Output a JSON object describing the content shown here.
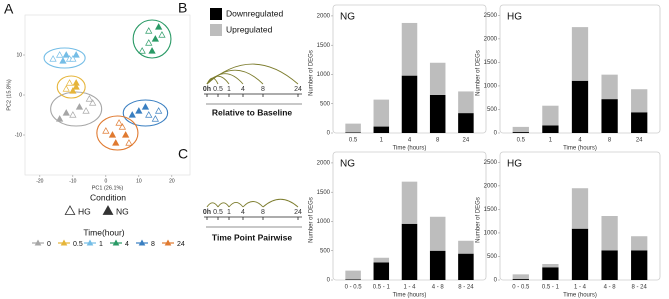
{
  "panel_label": "A",
  "diagrams": [
    {
      "label": "B",
      "timepoints": [
        "0h",
        "0.5",
        "1",
        "4",
        "8",
        "24"
      ],
      "caption": "Relative to Baseline",
      "mode": "baseline"
    },
    {
      "label": "C",
      "timepoints": [
        "0h",
        "0.5",
        "1",
        "4",
        "8",
        "24"
      ],
      "caption": "Time Point Pairwise",
      "mode": "pairwise"
    }
  ],
  "chart_data": [
    {
      "type": "scatter",
      "xlabel": "PC1 (26.1%)",
      "ylabel": "PC2 (15.8%)",
      "xlim": [
        -24.5,
        25.5
      ],
      "ylim": [
        -20,
        20
      ],
      "xticks": [
        -20,
        -10,
        0,
        10,
        20
      ],
      "yticks": [
        -10,
        0,
        10
      ],
      "legend_title": "Time(hour)",
      "condition_title": "Condition",
      "conditions": [
        {
          "name": "HG",
          "hollow": true
        },
        {
          "name": "NG",
          "hollow": false
        }
      ],
      "series": [
        {
          "name": "0",
          "color": "#a6a6a6",
          "x": [
            -14,
            -12,
            -10,
            -8,
            -6,
            -4,
            -5
          ],
          "y": [
            -6,
            -4.5,
            -5,
            -3,
            -4,
            -2,
            -1
          ],
          "hollow": [
            false,
            false,
            true,
            false,
            true,
            true,
            true
          ]
        },
        {
          "name": "0.5",
          "color": "#e6b53a",
          "x": [
            -12,
            -11,
            -10,
            -9,
            -9
          ],
          "y": [
            1.5,
            3,
            1,
            2,
            3
          ],
          "hollow": [
            true,
            true,
            false,
            false,
            false
          ]
        },
        {
          "name": "1",
          "color": "#74bde6",
          "x": [
            -16,
            -14,
            -13,
            -12,
            -11,
            -9,
            -10
          ],
          "y": [
            9,
            10,
            8.5,
            10,
            9,
            10,
            9
          ],
          "hollow": [
            true,
            true,
            false,
            false,
            true,
            false,
            true
          ]
        },
        {
          "name": "4",
          "color": "#2a9a66",
          "x": [
            11,
            13,
            14,
            15,
            16,
            17,
            13
          ],
          "y": [
            11,
            13,
            11,
            14,
            17,
            15,
            16
          ],
          "hollow": [
            true,
            true,
            false,
            false,
            false,
            true,
            true
          ]
        },
        {
          "name": "8",
          "color": "#3a7fc1",
          "x": [
            8,
            10,
            12,
            13,
            15,
            16
          ],
          "y": [
            -5,
            -4,
            -3,
            -5,
            -6,
            -4
          ],
          "hollow": [
            false,
            false,
            false,
            true,
            true,
            true
          ]
        },
        {
          "name": "24",
          "color": "#e07a30",
          "x": [
            0,
            2,
            3,
            5,
            6,
            4,
            7
          ],
          "y": [
            -9,
            -10,
            -12,
            -8,
            -10,
            -7,
            -12
          ],
          "hollow": [
            true,
            false,
            false,
            true,
            false,
            true,
            true
          ]
        }
      ]
    },
    {
      "type": "bar",
      "title": "NG",
      "xlabel": "Time (hours)",
      "ylabel": "Number of DEGs",
      "categories": [
        "0.5",
        "1",
        "4",
        "8",
        "24"
      ],
      "series": [
        {
          "name": "Downregulated",
          "color": "#000000",
          "values": [
            10,
            110,
            980,
            650,
            340
          ]
        },
        {
          "name": "Upregulated",
          "color": "#bdbdbd",
          "values": [
            150,
            460,
            900,
            550,
            370
          ]
        }
      ],
      "ylim": [
        0,
        2050
      ],
      "yticks": [
        0,
        500,
        1000,
        1500,
        2000
      ]
    },
    {
      "type": "bar",
      "title": "HG",
      "xlabel": "Time (hours)",
      "ylabel": "Number of DEGs",
      "categories": [
        "0.5",
        "1",
        "4",
        "8",
        "24"
      ],
      "series": [
        {
          "name": "Downregulated",
          "color": "#000000",
          "values": [
            20,
            160,
            1110,
            720,
            440
          ]
        },
        {
          "name": "Upregulated",
          "color": "#bdbdbd",
          "values": [
            110,
            420,
            1140,
            520,
            490
          ]
        }
      ],
      "ylim": [
        0,
        2550
      ],
      "yticks": [
        0,
        500,
        1000,
        1500,
        2000,
        2500
      ]
    },
    {
      "type": "bar",
      "title": "NG",
      "xlabel": "Time (hours)",
      "ylabel": "Number of DEGs",
      "categories": [
        "0 - 0.5",
        "0.5 - 1",
        "1 - 4",
        "4 - 8",
        "8 - 24"
      ],
      "series": [
        {
          "name": "Downregulated",
          "color": "#000000",
          "values": [
            10,
            300,
            960,
            500,
            450
          ]
        },
        {
          "name": "Upregulated",
          "color": "#bdbdbd",
          "values": [
            150,
            80,
            720,
            580,
            220
          ]
        }
      ],
      "ylim": [
        0,
        2050
      ],
      "yticks": [
        0,
        500,
        1000,
        1500,
        2000
      ]
    },
    {
      "type": "bar",
      "title": "HG",
      "xlabel": "Time (hours)",
      "ylabel": "Number of DEGs",
      "categories": [
        "0 - 0.5",
        "0.5 - 1",
        "1 - 4",
        "4 - 8",
        "8 - 24"
      ],
      "series": [
        {
          "name": "Downregulated",
          "color": "#000000",
          "values": [
            20,
            270,
            1090,
            630,
            630
          ]
        },
        {
          "name": "Upregulated",
          "color": "#bdbdbd",
          "values": [
            100,
            70,
            860,
            730,
            300
          ]
        }
      ],
      "ylim": [
        0,
        2550
      ],
      "yticks": [
        0,
        500,
        1000,
        1500,
        2000,
        2500
      ]
    }
  ]
}
